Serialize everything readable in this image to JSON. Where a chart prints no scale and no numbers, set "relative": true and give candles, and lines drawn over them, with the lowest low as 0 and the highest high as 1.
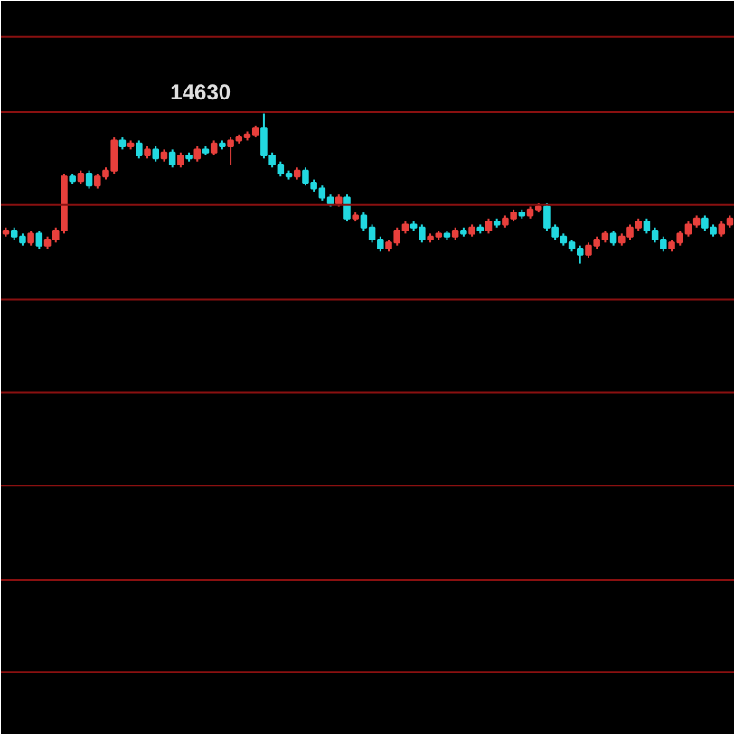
{
  "chart_data": {
    "type": "candlestick",
    "relative": true,
    "tick_labels": false,
    "ref_lines": [
      {
        "axis": "y",
        "value": 1.51,
        "color": "#8a1010"
      },
      {
        "axis": "y",
        "value": 1.01,
        "color": "#8a1010"
      },
      {
        "axis": "y",
        "value": 0.39,
        "color": "#8a1010"
      },
      {
        "axis": "y",
        "value": -0.24,
        "color": "#8a1010"
      },
      {
        "axis": "y",
        "value": -0.86,
        "color": "#8a1010"
      },
      {
        "axis": "y",
        "value": -1.48,
        "color": "#8a1010"
      },
      {
        "axis": "y",
        "value": -2.11,
        "color": "#8a1010"
      },
      {
        "axis": "y",
        "value": -2.72,
        "color": "#8a1010"
      }
    ],
    "annotations": [
      "14630"
    ],
    "categories": [
      null,
      null,
      null,
      null,
      null,
      null,
      null,
      null,
      null,
      null,
      null,
      null,
      null,
      null,
      null,
      null,
      null,
      null,
      null,
      null,
      null,
      null,
      null,
      null,
      null,
      null,
      null,
      null,
      null,
      null,
      null,
      null,
      null,
      null,
      null,
      null,
      null,
      null,
      null,
      null,
      null,
      null,
      null,
      null,
      null,
      null,
      null,
      null,
      null,
      null,
      null,
      null,
      null,
      null,
      null,
      null,
      null,
      null,
      null,
      null,
      null,
      null,
      null,
      null,
      null,
      null,
      null,
      null,
      null,
      null,
      null,
      null,
      null,
      null,
      null,
      null,
      null,
      null,
      null,
      null,
      null,
      null,
      null,
      null,
      null,
      null,
      null,
      null
    ],
    "ohlc": [
      [
        0.2,
        0.24,
        0.18,
        0.22
      ],
      [
        0.22,
        0.24,
        0.16,
        0.18
      ],
      [
        0.18,
        0.2,
        0.12,
        0.14
      ],
      [
        0.14,
        0.22,
        0.12,
        0.2
      ],
      [
        0.2,
        0.22,
        0.1,
        0.12
      ],
      [
        0.12,
        0.18,
        0.1,
        0.16
      ],
      [
        0.16,
        0.24,
        0.14,
        0.22
      ],
      [
        0.22,
        0.6,
        0.2,
        0.58
      ],
      [
        0.58,
        0.6,
        0.53,
        0.55
      ],
      [
        0.55,
        0.62,
        0.53,
        0.6
      ],
      [
        0.6,
        0.62,
        0.5,
        0.52
      ],
      [
        0.52,
        0.6,
        0.5,
        0.58
      ],
      [
        0.58,
        0.64,
        0.56,
        0.62
      ],
      [
        0.62,
        0.84,
        0.6,
        0.82
      ],
      [
        0.82,
        0.84,
        0.76,
        0.78
      ],
      [
        0.78,
        0.82,
        0.76,
        0.8
      ],
      [
        0.8,
        0.82,
        0.7,
        0.72
      ],
      [
        0.72,
        0.78,
        0.7,
        0.76
      ],
      [
        0.76,
        0.78,
        0.68,
        0.7
      ],
      [
        0.7,
        0.76,
        0.68,
        0.74
      ],
      [
        0.74,
        0.76,
        0.64,
        0.66
      ],
      [
        0.66,
        0.74,
        0.64,
        0.72
      ],
      [
        0.72,
        0.74,
        0.68,
        0.7
      ],
      [
        0.7,
        0.78,
        0.68,
        0.76
      ],
      [
        0.76,
        0.78,
        0.72,
        0.74
      ],
      [
        0.74,
        0.82,
        0.72,
        0.8
      ],
      [
        0.8,
        0.82,
        0.76,
        0.78
      ],
      [
        0.78,
        0.84,
        0.66,
        0.82
      ],
      [
        0.82,
        0.86,
        0.8,
        0.84
      ],
      [
        0.84,
        0.88,
        0.82,
        0.86
      ],
      [
        0.86,
        0.92,
        0.84,
        0.9
      ],
      [
        0.9,
        1.0,
        0.7,
        0.72
      ],
      [
        0.72,
        0.74,
        0.64,
        0.66
      ],
      [
        0.66,
        0.68,
        0.58,
        0.6
      ],
      [
        0.6,
        0.62,
        0.56,
        0.58
      ],
      [
        0.58,
        0.64,
        0.56,
        0.62
      ],
      [
        0.62,
        0.64,
        0.52,
        0.54
      ],
      [
        0.54,
        0.56,
        0.48,
        0.5
      ],
      [
        0.5,
        0.52,
        0.42,
        0.44
      ],
      [
        0.44,
        0.46,
        0.38,
        0.4
      ],
      [
        0.4,
        0.46,
        0.38,
        0.44
      ],
      [
        0.44,
        0.46,
        0.28,
        0.3
      ],
      [
        0.3,
        0.34,
        0.28,
        0.32
      ],
      [
        0.32,
        0.34,
        0.22,
        0.24
      ],
      [
        0.24,
        0.26,
        0.14,
        0.16
      ],
      [
        0.16,
        0.18,
        0.08,
        0.1
      ],
      [
        0.1,
        0.16,
        0.08,
        0.14
      ],
      [
        0.14,
        0.24,
        0.12,
        0.22
      ],
      [
        0.22,
        0.28,
        0.2,
        0.26
      ],
      [
        0.26,
        0.28,
        0.22,
        0.24
      ],
      [
        0.24,
        0.26,
        0.14,
        0.16
      ],
      [
        0.16,
        0.2,
        0.14,
        0.18
      ],
      [
        0.18,
        0.22,
        0.16,
        0.2
      ],
      [
        0.2,
        0.22,
        0.16,
        0.18
      ],
      [
        0.18,
        0.24,
        0.16,
        0.22
      ],
      [
        0.22,
        0.24,
        0.18,
        0.2
      ],
      [
        0.2,
        0.26,
        0.18,
        0.24
      ],
      [
        0.24,
        0.26,
        0.2,
        0.22
      ],
      [
        0.22,
        0.3,
        0.2,
        0.28
      ],
      [
        0.28,
        0.3,
        0.24,
        0.26
      ],
      [
        0.26,
        0.32,
        0.24,
        0.3
      ],
      [
        0.3,
        0.36,
        0.28,
        0.34
      ],
      [
        0.34,
        0.36,
        0.3,
        0.32
      ],
      [
        0.32,
        0.38,
        0.3,
        0.36
      ],
      [
        0.36,
        0.4,
        0.34,
        0.38
      ],
      [
        0.38,
        0.4,
        0.22,
        0.24
      ],
      [
        0.24,
        0.26,
        0.16,
        0.18
      ],
      [
        0.18,
        0.2,
        0.12,
        0.14
      ],
      [
        0.14,
        0.16,
        0.08,
        0.1
      ],
      [
        0.1,
        0.12,
        0.0,
        0.06
      ],
      [
        0.06,
        0.14,
        0.04,
        0.12
      ],
      [
        0.12,
        0.18,
        0.1,
        0.16
      ],
      [
        0.16,
        0.22,
        0.14,
        0.2
      ],
      [
        0.2,
        0.22,
        0.12,
        0.14
      ],
      [
        0.14,
        0.2,
        0.12,
        0.18
      ],
      [
        0.18,
        0.26,
        0.16,
        0.24
      ],
      [
        0.24,
        0.3,
        0.22,
        0.28
      ],
      [
        0.28,
        0.3,
        0.2,
        0.22
      ],
      [
        0.22,
        0.24,
        0.14,
        0.16
      ],
      [
        0.16,
        0.18,
        0.08,
        0.1
      ],
      [
        0.1,
        0.16,
        0.08,
        0.14
      ],
      [
        0.14,
        0.22,
        0.12,
        0.2
      ],
      [
        0.2,
        0.28,
        0.18,
        0.26
      ],
      [
        0.26,
        0.32,
        0.24,
        0.3
      ],
      [
        0.3,
        0.32,
        0.22,
        0.24
      ],
      [
        0.24,
        0.26,
        0.18,
        0.2
      ],
      [
        0.2,
        0.28,
        0.18,
        0.26
      ],
      [
        0.26,
        0.32,
        0.24,
        0.3
      ]
    ],
    "colors": [
      "#e8403c",
      "#22d8e0",
      "#22d8e0",
      "#e8403c",
      "#22d8e0",
      "#e8403c",
      "#e8403c",
      "#e8403c",
      "#22d8e0",
      "#e8403c",
      "#22d8e0",
      "#e8403c",
      "#e8403c",
      "#e8403c",
      "#22d8e0",
      "#e8403c",
      "#22d8e0",
      "#e8403c",
      "#22d8e0",
      "#e8403c",
      "#22d8e0",
      "#e8403c",
      "#22d8e0",
      "#e8403c",
      "#22d8e0",
      "#e8403c",
      "#22d8e0",
      "#e8403c",
      "#e8403c",
      "#e8403c",
      "#e8403c",
      "#22d8e0",
      "#22d8e0",
      "#22d8e0",
      "#22d8e0",
      "#e8403c",
      "#22d8e0",
      "#22d8e0",
      "#22d8e0",
      "#22d8e0",
      "#e8403c",
      "#22d8e0",
      "#e8403c",
      "#22d8e0",
      "#22d8e0",
      "#22d8e0",
      "#e8403c",
      "#e8403c",
      "#e8403c",
      "#22d8e0",
      "#22d8e0",
      "#e8403c",
      "#e8403c",
      "#22d8e0",
      "#e8403c",
      "#22d8e0",
      "#e8403c",
      "#22d8e0",
      "#e8403c",
      "#22d8e0",
      "#e8403c",
      "#e8403c",
      "#22d8e0",
      "#e8403c",
      "#e8403c",
      "#22d8e0",
      "#22d8e0",
      "#22d8e0",
      "#22d8e0",
      "#22d8e0",
      "#e8403c",
      "#e8403c",
      "#e8403c",
      "#22d8e0",
      "#e8403c",
      "#e8403c",
      "#e8403c",
      "#22d8e0",
      "#22d8e0",
      "#22d8e0",
      "#e8403c",
      "#e8403c",
      "#e8403c",
      "#e8403c",
      "#22d8e0",
      "#22d8e0",
      "#e8403c",
      "#e8403c"
    ]
  }
}
